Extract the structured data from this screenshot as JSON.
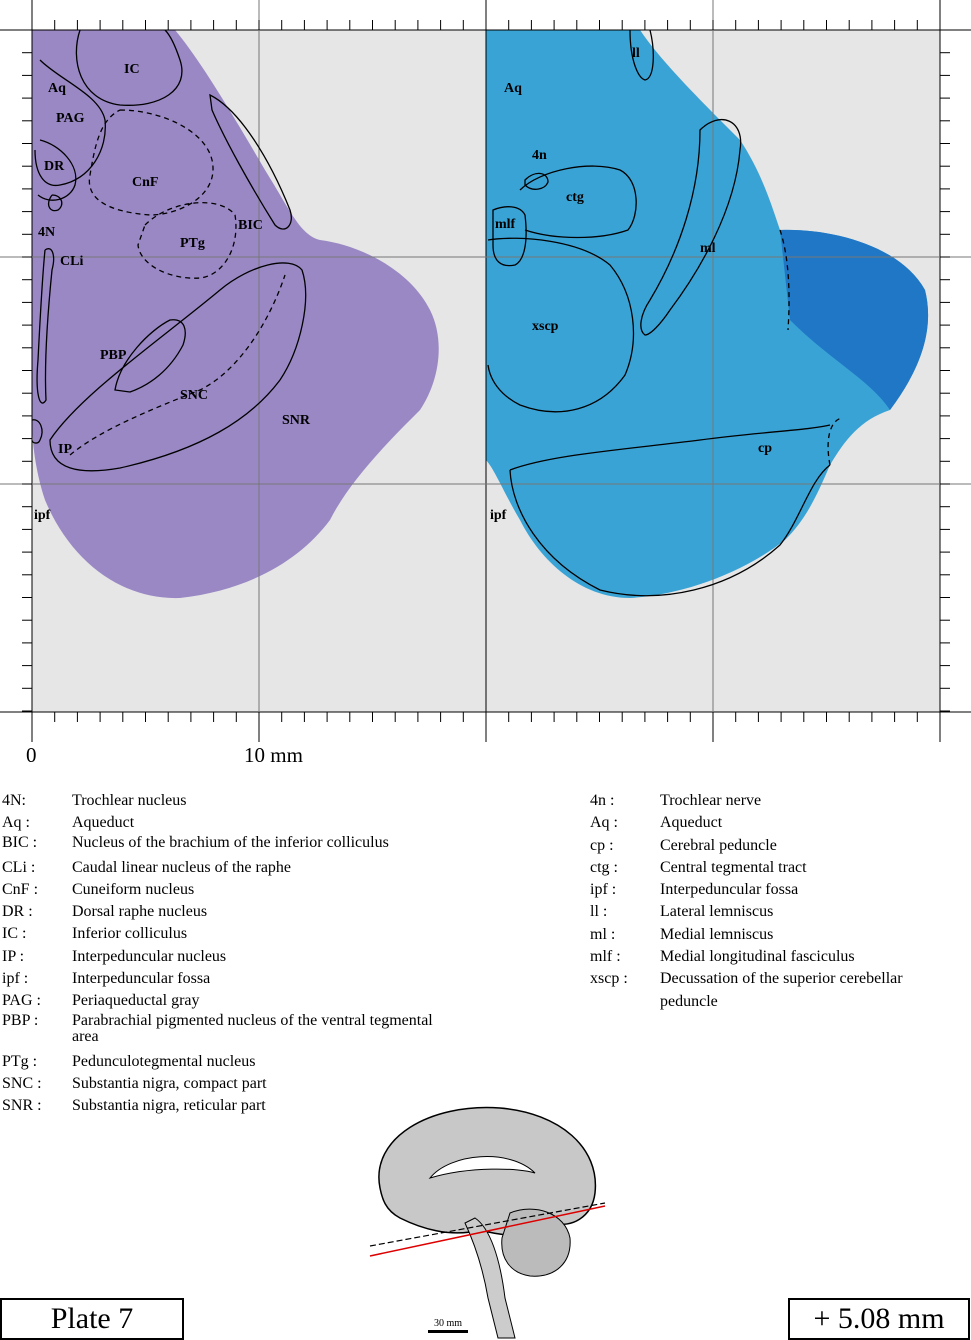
{
  "figure": {
    "axis_zero": "0",
    "axis_ten": "10 mm",
    "left_labels": [
      "IC",
      "Aq",
      "PAG",
      "DR",
      "CnF",
      "4N",
      "PTg",
      "BIC",
      "CLi",
      "PBP",
      "SNC",
      "SNR",
      "IP",
      "ipf"
    ],
    "right_labels": [
      "ll",
      "Aq",
      "4n",
      "ctg",
      "mlf",
      "ml",
      "xscp",
      "cp",
      "ipf"
    ]
  },
  "abbr_left": [
    {
      "k": "4N:",
      "d": "Trochlear nucleus"
    },
    {
      "k": "Aq :",
      "d": "Aqueduct"
    },
    {
      "k": "BIC :",
      "d": "Nucleus of the brachium of the inferior colliculus"
    },
    {
      "k": "CLi :",
      "d": "Caudal linear nucleus of the raphe"
    },
    {
      "k": "CnF :",
      "d": "Cuneiform nucleus"
    },
    {
      "k": "DR :",
      "d": "Dorsal raphe nucleus"
    },
    {
      "k": "IC :",
      "d": "Inferior colliculus"
    },
    {
      "k": "IP :",
      "d": "Interpeduncular nucleus"
    },
    {
      "k": "ipf :",
      "d": "Interpeduncular fossa"
    },
    {
      "k": "PAG :",
      "d": "Periaqueductal gray"
    },
    {
      "k": "PBP :",
      "d": "Parabrachial pigmented nucleus of the ventral tegmental area"
    },
    {
      "k": "PTg :",
      "d": "Pedunculotegmental nucleus"
    },
    {
      "k": "SNC :",
      "d": "Substantia nigra, compact part"
    },
    {
      "k": "SNR :",
      "d": "Substantia nigra, reticular part"
    }
  ],
  "abbr_right": [
    {
      "k": "4n :",
      "d": "Trochlear nerve"
    },
    {
      "k": "Aq :",
      "d": "Aqueduct"
    },
    {
      "k": "cp :",
      "d": "Cerebral peduncle"
    },
    {
      "k": "ctg :",
      "d": "Central tegmental tract"
    },
    {
      "k": "ipf :",
      "d": "Interpeduncular fossa"
    },
    {
      "k": "ll :",
      "d": "Lateral lemniscus"
    },
    {
      "k": "ml :",
      "d": "Medial lemniscus"
    },
    {
      "k": "mlf :",
      "d": "Medial longitudinal fasciculus"
    },
    {
      "k": "xscp :",
      "d": "Decussation of the superior cerebellar peduncle"
    }
  ],
  "plate": "Plate 7",
  "coordinate": "+ 5.08 mm",
  "scale_label": "30 mm",
  "colors": {
    "nissl": "#9a88c4",
    "myelin": "#3aa3d6",
    "myelin_dark": "#1463b8",
    "panel_bg": "#e6e6e6"
  }
}
